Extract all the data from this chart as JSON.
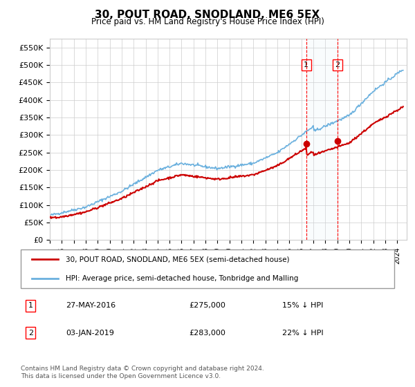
{
  "title": "30, POUT ROAD, SNODLAND, ME6 5EX",
  "subtitle": "Price paid vs. HM Land Registry's House Price Index (HPI)",
  "ylim": [
    0,
    575000
  ],
  "yticks": [
    0,
    50000,
    100000,
    150000,
    200000,
    250000,
    300000,
    350000,
    400000,
    450000,
    500000,
    550000
  ],
  "ytick_labels": [
    "£0",
    "£50K",
    "£100K",
    "£150K",
    "£200K",
    "£250K",
    "£300K",
    "£350K",
    "£400K",
    "£450K",
    "£500K",
    "£550K"
  ],
  "hpi_color": "#6ab0de",
  "price_color": "#cc0000",
  "marker1_date": 2016.41,
  "marker1_price": 275000,
  "marker1_label": "27-MAY-2016",
  "marker1_text": "£275,000",
  "marker1_note": "15% ↓ HPI",
  "marker2_date": 2019.01,
  "marker2_price": 283000,
  "marker2_label": "03-JAN-2019",
  "marker2_text": "£283,000",
  "marker2_note": "22% ↓ HPI",
  "legend_line1": "30, POUT ROAD, SNODLAND, ME6 5EX (semi-detached house)",
  "legend_line2": "HPI: Average price, semi-detached house, Tonbridge and Malling",
  "footnote": "Contains HM Land Registry data © Crown copyright and database right 2024.\nThis data is licensed under the Open Government Licence v3.0.",
  "background_color": "#ffffff",
  "grid_color": "#cccccc",
  "shading_color": "#dceef8"
}
